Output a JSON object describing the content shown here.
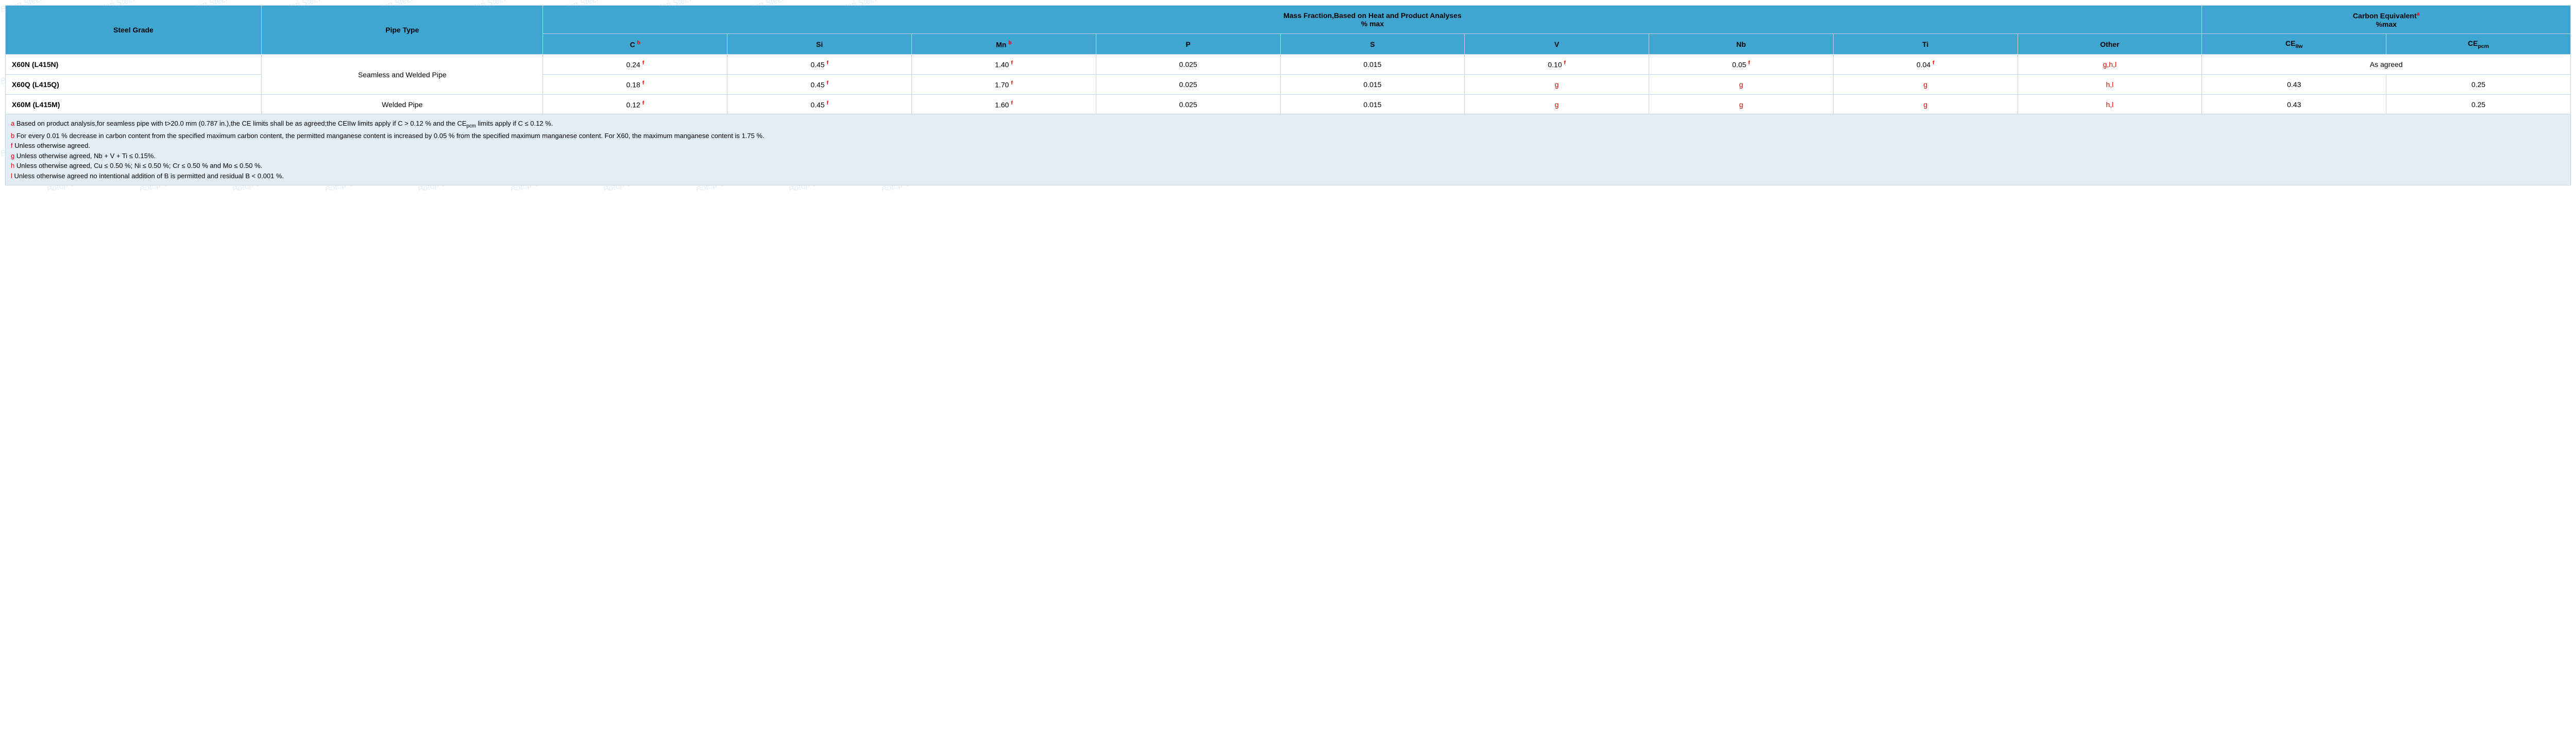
{
  "watermark_text": "Botop Steel",
  "header": {
    "steel_grade": "Steel Grade",
    "pipe_type": "Pipe Type",
    "mass_fraction_line1": "Mass Fraction,Based on Heat and Product Analyses",
    "mass_fraction_line2": "% max",
    "carbon_eq_line1": "Carbon Equivalent",
    "carbon_eq_sup": "a",
    "carbon_eq_line2": "%max",
    "c": "C",
    "c_sup": "b",
    "si": "Si",
    "mn": "Mn",
    "mn_sup": "b",
    "p": "P",
    "s": "S",
    "v": "V",
    "nb": "Nb",
    "ti": "Ti",
    "other": "Other",
    "ce_iiw": "CE",
    "ce_iiw_sub": "IIw",
    "ce_pcm": "CE",
    "ce_pcm_sub": "pcm"
  },
  "rows": {
    "r0": {
      "grade": "X60N (L415N)",
      "pipe_type": "Seamless and Welded Pipe",
      "c": "0.24",
      "c_sup": "f",
      "si": "0.45",
      "si_sup": "f",
      "mn": "1.40",
      "mn_sup": "f",
      "p": "0.025",
      "s": "0.015",
      "v": "0.10",
      "v_sup": "f",
      "nb": "0.05",
      "nb_sup": "f",
      "ti": "0.04",
      "ti_sup": "f",
      "other": "g,h,l",
      "ce_agreed": "As agreed"
    },
    "r1": {
      "grade": "X60Q (L415Q)",
      "c": "0.18",
      "c_sup": "f",
      "si": "0.45",
      "si_sup": "f",
      "mn": "1.70",
      "mn_sup": "f",
      "p": "0.025",
      "s": "0.015",
      "v": "g",
      "nb": "g",
      "ti": "g",
      "other": "h,l",
      "ce_iiw": "0.43",
      "ce_pcm": "0.25"
    },
    "r2": {
      "grade": "X60M (L415M)",
      "pipe_type": "Welded Pipe",
      "c": "0.12",
      "c_sup": "f",
      "si": "0.45",
      "si_sup": "f",
      "mn": "1.60",
      "mn_sup": "f",
      "p": "0.025",
      "s": "0.015",
      "v": "g",
      "nb": "g",
      "ti": "g",
      "other": "h,l",
      "ce_iiw": "0.43",
      "ce_pcm": "0.25"
    }
  },
  "footnotes": {
    "a_lead": "a",
    "a_text_1": " Based on product analysis,for seamless pipe with t>20.0 mm (0.787 in.),the CE limits shall be as agreed;the CEIIw limits apply if C > 0.12 % and the CE",
    "a_sub": "pcm",
    "a_text_2": " limits apply if C ≤ 0.12 %.",
    "b_lead": "b",
    "b_text": " For every 0.01 % decrease in carbon content from the specified maximum carbon content, the permitted manganese content is increased by 0.05 % from the specified maximum manganese content. For X60, the maximum manganese content is 1.75 %.",
    "f_lead": "f",
    "f_text": " Unless otherwise agreed.",
    "g_lead": "g",
    "g_text": " Unless otherwise agreed, Nb + V + Ti ≤ 0.15%.",
    "h_lead": "h",
    "h_text": " Unless otherwise agreed, Cu ≤ 0.50 %; Ni ≤ 0.50 %; Cr ≤ 0.50 % and Mo ≤ 0.50 %.",
    "l_lead": "l",
    "l_text": " Unless otherwise agreed no intentional addition of B is permitted and residual B < 0.001 %."
  }
}
